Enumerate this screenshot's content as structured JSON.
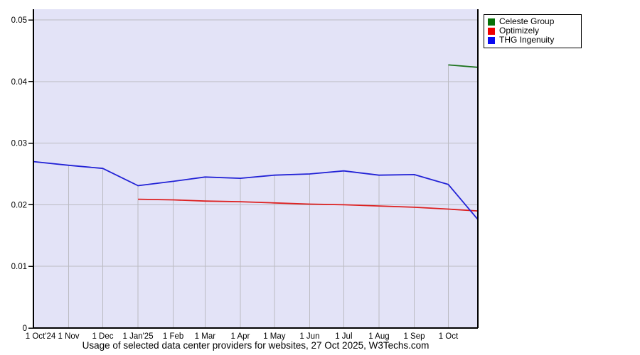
{
  "title": "Usage of selected data center providers for websites, 27 Oct 2025, W3Techs.com",
  "legend": {
    "items": [
      {
        "label": "Celeste Group",
        "color": "#067006"
      },
      {
        "label": "Optimizely",
        "color": "#ee0000"
      },
      {
        "label": "THG Ingenuity",
        "color": "#0a0af0"
      }
    ]
  },
  "chart_data": {
    "type": "line",
    "title": "Usage of selected data center providers for websites, 27 Oct 2025, W3Techs.com",
    "xlabel": "",
    "ylabel": "",
    "x_unit": "days since 1 Oct 2024",
    "x_range_days": [
      0,
      391
    ],
    "x_tick_days": [
      0,
      31,
      61,
      92,
      123,
      151,
      182,
      212,
      243,
      273,
      304,
      335,
      365
    ],
    "x_tick_labels": [
      "1 Oct'24",
      "1 Nov",
      "1 Dec",
      "1 Jan'25",
      "1 Feb",
      "1 Mar",
      "1 Apr",
      "1 May",
      "1 Jun",
      "1 Jul",
      "1 Aug",
      "1 Sep",
      "1 Oct"
    ],
    "y_ticks": [
      0,
      0.01,
      0.02,
      0.03,
      0.04,
      0.05
    ],
    "y_tick_labels": [
      "0",
      "0.01",
      "0.02",
      "0.03",
      "0.04",
      "0.05"
    ],
    "ylim": [
      0,
      0.0517
    ],
    "grid": "on",
    "plot_bg": "#e3e3f7",
    "grid_color": "#bbbbc2",
    "axis_color": "#000000",
    "legend_position": "outside-top-right",
    "series": [
      {
        "name": "Celeste Group",
        "color": "#1d731d",
        "x": [
          365,
          391
        ],
        "values": [
          0.0427,
          0.0423
        ]
      },
      {
        "name": "Optimizely",
        "color": "#dd2020",
        "x": [
          92,
          123,
          151,
          182,
          212,
          243,
          273,
          304,
          335,
          365,
          391
        ],
        "values": [
          0.0209,
          0.0208,
          0.0206,
          0.0205,
          0.0203,
          0.0201,
          0.02,
          0.0198,
          0.0196,
          0.0193,
          0.019
        ]
      },
      {
        "name": "THG Ingenuity",
        "color": "#2222d6",
        "x": [
          0,
          31,
          61,
          92,
          123,
          151,
          182,
          212,
          243,
          273,
          304,
          335,
          365,
          391
        ],
        "values": [
          0.027,
          0.0264,
          0.0259,
          0.0231,
          0.0238,
          0.0245,
          0.0243,
          0.0248,
          0.025,
          0.0255,
          0.0248,
          0.0249,
          0.0233,
          0.0176
        ]
      }
    ]
  }
}
